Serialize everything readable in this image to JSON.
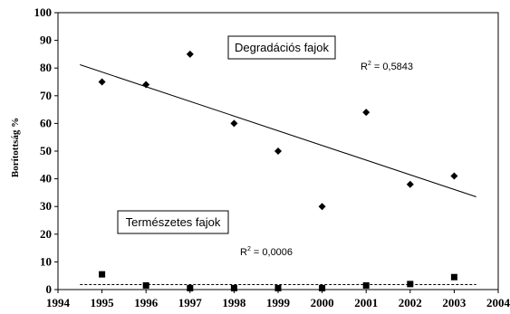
{
  "chart_data": {
    "type": "scatter",
    "ylabel": "Borítottság %",
    "xlabel": "",
    "xlim": [
      1994,
      2004
    ],
    "ylim": [
      0,
      100
    ],
    "xticks": [
      1994,
      1995,
      1996,
      1997,
      1998,
      1999,
      2000,
      2001,
      2002,
      2003,
      2004
    ],
    "yticks": [
      0,
      10,
      20,
      30,
      40,
      50,
      60,
      70,
      80,
      90,
      100
    ],
    "grid": false,
    "series": [
      {
        "name": "Degradációs fajok",
        "marker": "diamond",
        "x": [
          1995,
          1996,
          1997,
          1998,
          1999,
          2000,
          2001,
          2002,
          2003
        ],
        "y": [
          75,
          74,
          85,
          60,
          50,
          30,
          64,
          38,
          41
        ],
        "trendline": {
          "type": "linear",
          "x0": 1994.5,
          "y0": 81.2,
          "x1": 2003.5,
          "y1": 33.5,
          "style": "solid"
        },
        "r2_label": "R",
        "r2_exp": "2",
        "r2_value": " = 0,5843"
      },
      {
        "name": "Természetes fajok",
        "marker": "square",
        "x": [
          1995,
          1996,
          1997,
          1998,
          1999,
          2000,
          2001,
          2002,
          2003
        ],
        "y": [
          5.5,
          1.5,
          0.5,
          0.5,
          0.5,
          0.5,
          1.5,
          2.0,
          4.5
        ],
        "trendline": {
          "type": "linear",
          "x0": 1994.5,
          "y0": 1.8,
          "x1": 2003.5,
          "y1": 1.8,
          "style": "dashed"
        },
        "r2_label": "R",
        "r2_exp": "2",
        "r2_value": " = 0,0006"
      }
    ],
    "colors": {
      "marker": "#000000",
      "axis": "#000000",
      "background": "#ffffff"
    }
  }
}
